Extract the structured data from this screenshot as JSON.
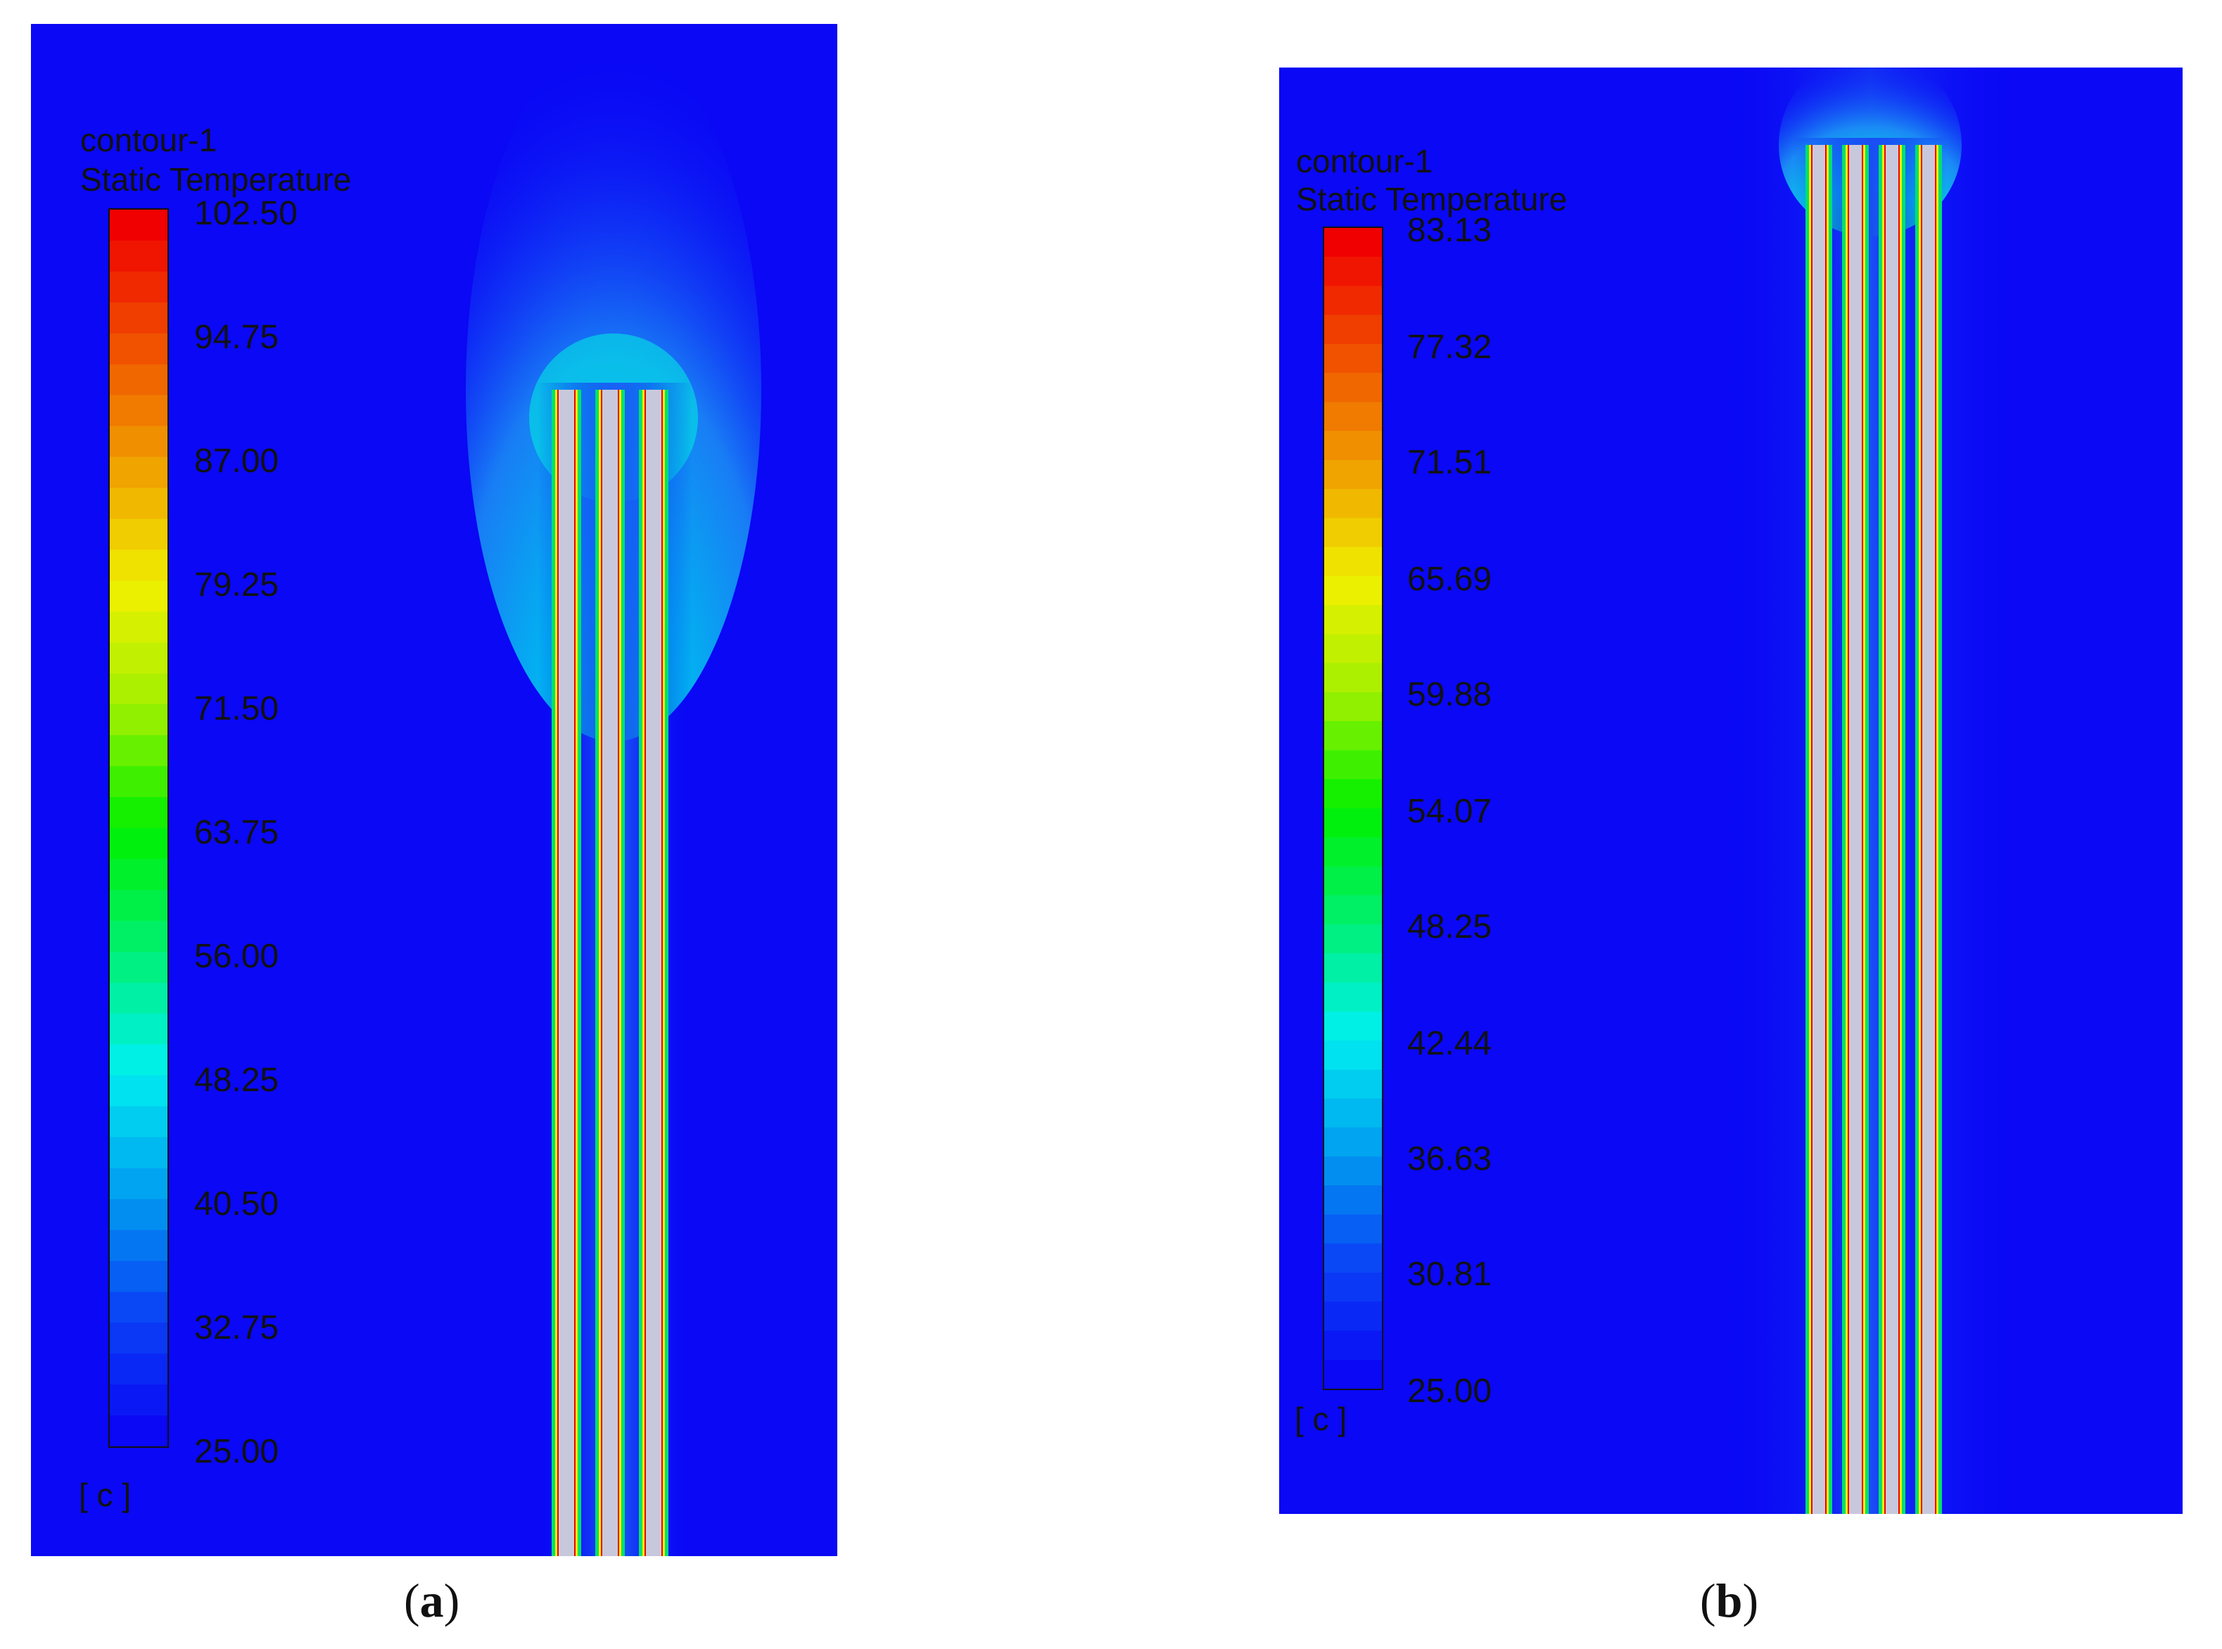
{
  "panels": [
    {
      "legend_title_1": "contour-1",
      "legend_title_2": "Static Temperature",
      "ticks": [
        "102.50",
        "94.75",
        "87.00",
        "79.25",
        "71.50",
        "63.75",
        "56.00",
        "48.25",
        "40.50",
        "32.75",
        "25.00"
      ],
      "unit": "[ c ]",
      "caption_open": "(",
      "caption_letter": "a",
      "caption_close": ")"
    },
    {
      "legend_title_1": "contour-1",
      "legend_title_2": "Static Temperature",
      "ticks": [
        "83.13",
        "77.32",
        "71.51",
        "65.69",
        "59.88",
        "54.07",
        "48.25",
        "42.44",
        "36.63",
        "30.81",
        "25.00"
      ],
      "unit": "[ c ]",
      "caption_open": "(",
      "caption_letter": "b",
      "caption_close": ")"
    }
  ],
  "colors": {
    "background_blue": "#0a08f5",
    "colormap": [
      "#0a08f5",
      "#0a46f5",
      "#00a0f0",
      "#00f0f0",
      "#00f070",
      "#00f000",
      "#a0f000",
      "#f0f000",
      "#f0a000",
      "#f05000",
      "#f00000"
    ]
  }
}
